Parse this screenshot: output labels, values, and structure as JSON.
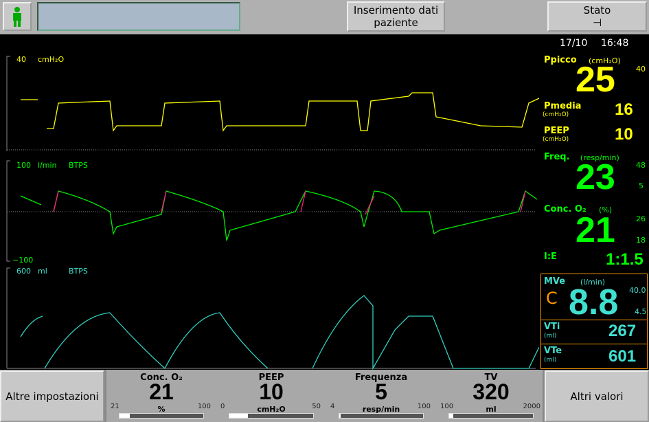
{
  "header": {
    "patient_button": "Inserimento dati paziente",
    "status_button": "Stato",
    "date": "17/10",
    "time": "16:48"
  },
  "waveforms": {
    "pressure": {
      "max": "40",
      "unit": "cmH₂O"
    },
    "flow": {
      "max": "100",
      "unit": "l/min",
      "mode": "BTPS",
      "min": "−100"
    },
    "volume": {
      "max": "600",
      "unit": "ml",
      "mode": "BTPS"
    }
  },
  "readouts": {
    "ppicco": {
      "label": "Ppicco",
      "unit": "(cmH₂O)",
      "value": "25",
      "alarm_high": "40"
    },
    "pmedia": {
      "label": "Pmedia",
      "unit": "(cmH₂O)",
      "value": "16"
    },
    "peep": {
      "label": "PEEP",
      "unit": "(cmH₂O)",
      "value": "10"
    },
    "freq": {
      "label": "Freq.",
      "unit": "(resp/min)",
      "value": "23",
      "alarm_high": "48",
      "alarm_low": "5"
    },
    "conc_o2": {
      "label": "Conc. O₂",
      "unit": "(%)",
      "value": "21",
      "alarm_high": "26",
      "alarm_low": "18"
    },
    "ie": {
      "label": "I:E",
      "value": "1:1.5"
    },
    "mve": {
      "label": "MVe",
      "unit": "(l/min)",
      "flag": "C",
      "value": "8.8",
      "alarm_high": "40.0",
      "alarm_low": "4.5"
    },
    "vti": {
      "label": "VTi",
      "unit": "(ml)",
      "value": "267"
    },
    "vte": {
      "label": "VTe",
      "unit": "(ml)",
      "value": "601"
    }
  },
  "footer": {
    "left_button": "Altre impostazioni",
    "right_button": "Altri valori",
    "settings": [
      {
        "label": "Conc. O₂",
        "value": "21",
        "unit": "%",
        "min": "21",
        "max": "100"
      },
      {
        "label": "PEEP",
        "value": "10",
        "unit": "cmH₂O",
        "min": "0",
        "max": "50"
      },
      {
        "label": "Frequenza",
        "value": "5",
        "unit": "resp/min",
        "min": "4",
        "max": "100"
      },
      {
        "label": "TV",
        "value": "320",
        "unit": "ml",
        "min": "100",
        "max": "2000"
      }
    ]
  }
}
